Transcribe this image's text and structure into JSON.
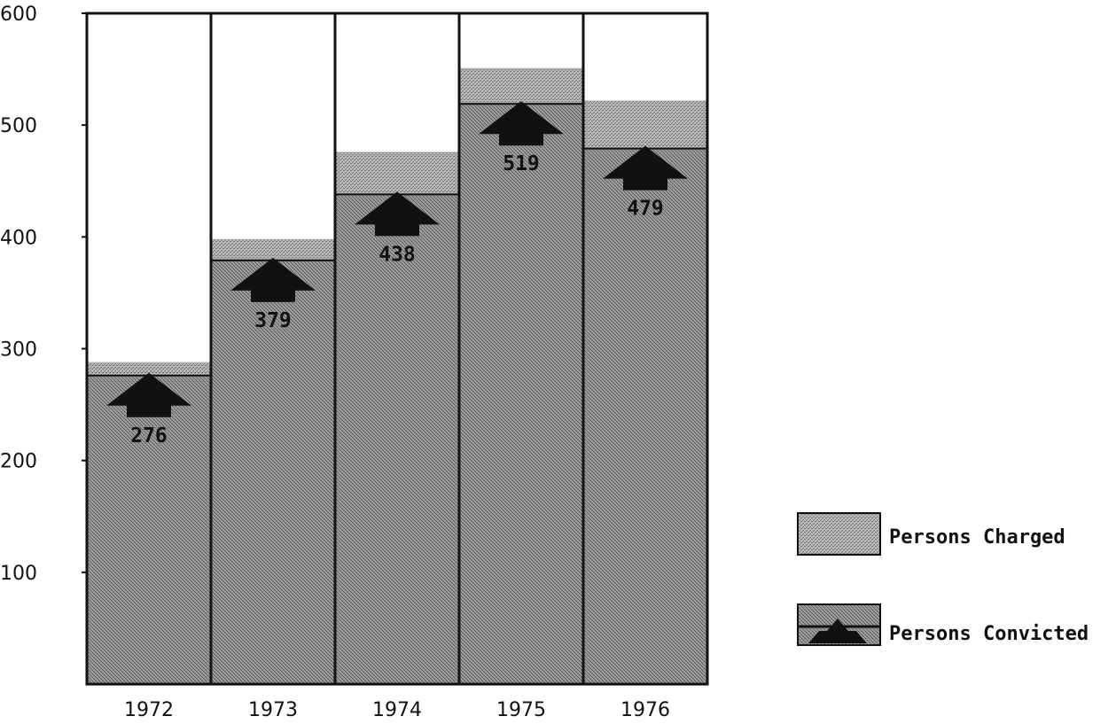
{
  "chart_data": {
    "type": "bar",
    "categories": [
      "1972",
      "1973",
      "1974",
      "1975",
      "1976"
    ],
    "series": [
      {
        "name": "Persons Charged",
        "values": [
          288,
          398,
          476,
          551,
          522
        ]
      },
      {
        "name": "Persons Convicted",
        "values": [
          276,
          379,
          438,
          519,
          479
        ]
      }
    ],
    "data_labels": [
      "276",
      "379",
      "438",
      "519",
      "479"
    ],
    "y_ticks": [
      "600",
      "500",
      "400",
      "300",
      "200",
      "100"
    ],
    "ylim": [
      0,
      600
    ],
    "grid": false,
    "legend_position": "right",
    "colors": {
      "charged": "#a6a6a6",
      "convicted": "#8c8c8c",
      "arrow": "#111111",
      "frame": "#111111"
    }
  }
}
